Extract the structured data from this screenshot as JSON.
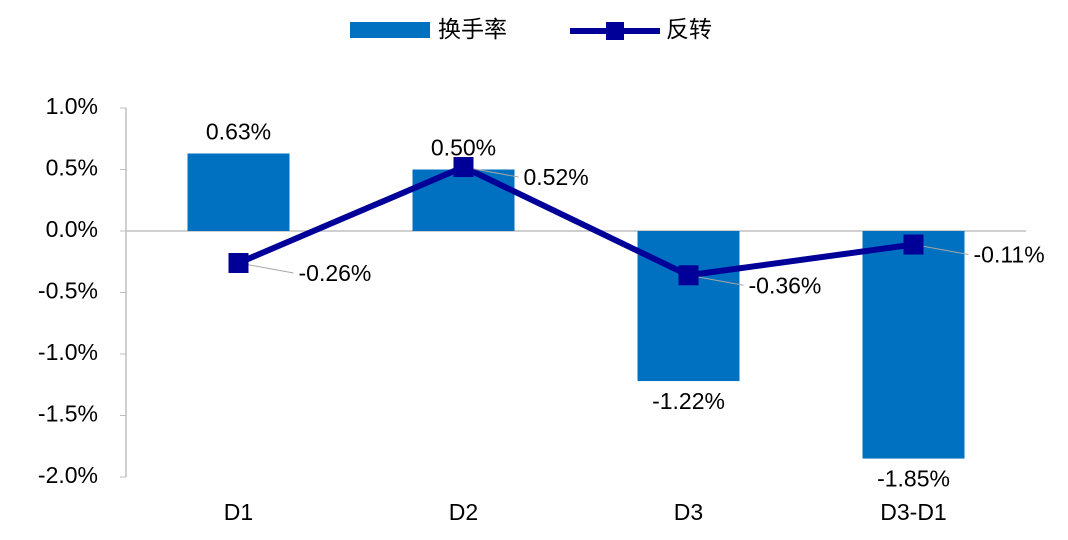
{
  "chart_data": {
    "type": "combo",
    "categories": [
      "D1",
      "D2",
      "D3",
      "D3-D1"
    ],
    "series": [
      {
        "name": "换手率",
        "type": "bar",
        "color": "#0070c0",
        "values": [
          0.63,
          0.5,
          -1.22,
          -1.85
        ],
        "value_labels": [
          "0.63%",
          "0.50%",
          "-1.22%",
          "-1.85%"
        ]
      },
      {
        "name": "反转",
        "type": "line",
        "color": "#000099",
        "values": [
          -0.26,
          0.52,
          -0.36,
          -0.11
        ],
        "value_labels": [
          "-0.26%",
          "0.52%",
          "-0.36%",
          "-0.11%"
        ]
      }
    ],
    "ylim": [
      -2.0,
      1.0
    ],
    "yticks": [
      {
        "value": 1.0,
        "label": "1.0%"
      },
      {
        "value": 0.5,
        "label": "0.5%"
      },
      {
        "value": 0.0,
        "label": "0.0%"
      },
      {
        "value": -0.5,
        "label": "-0.5%"
      },
      {
        "value": -1.0,
        "label": "-1.0%"
      },
      {
        "value": -1.5,
        "label": "-1.5%"
      },
      {
        "value": -2.0,
        "label": "-2.0%"
      }
    ],
    "grid": false,
    "legend": "top"
  }
}
